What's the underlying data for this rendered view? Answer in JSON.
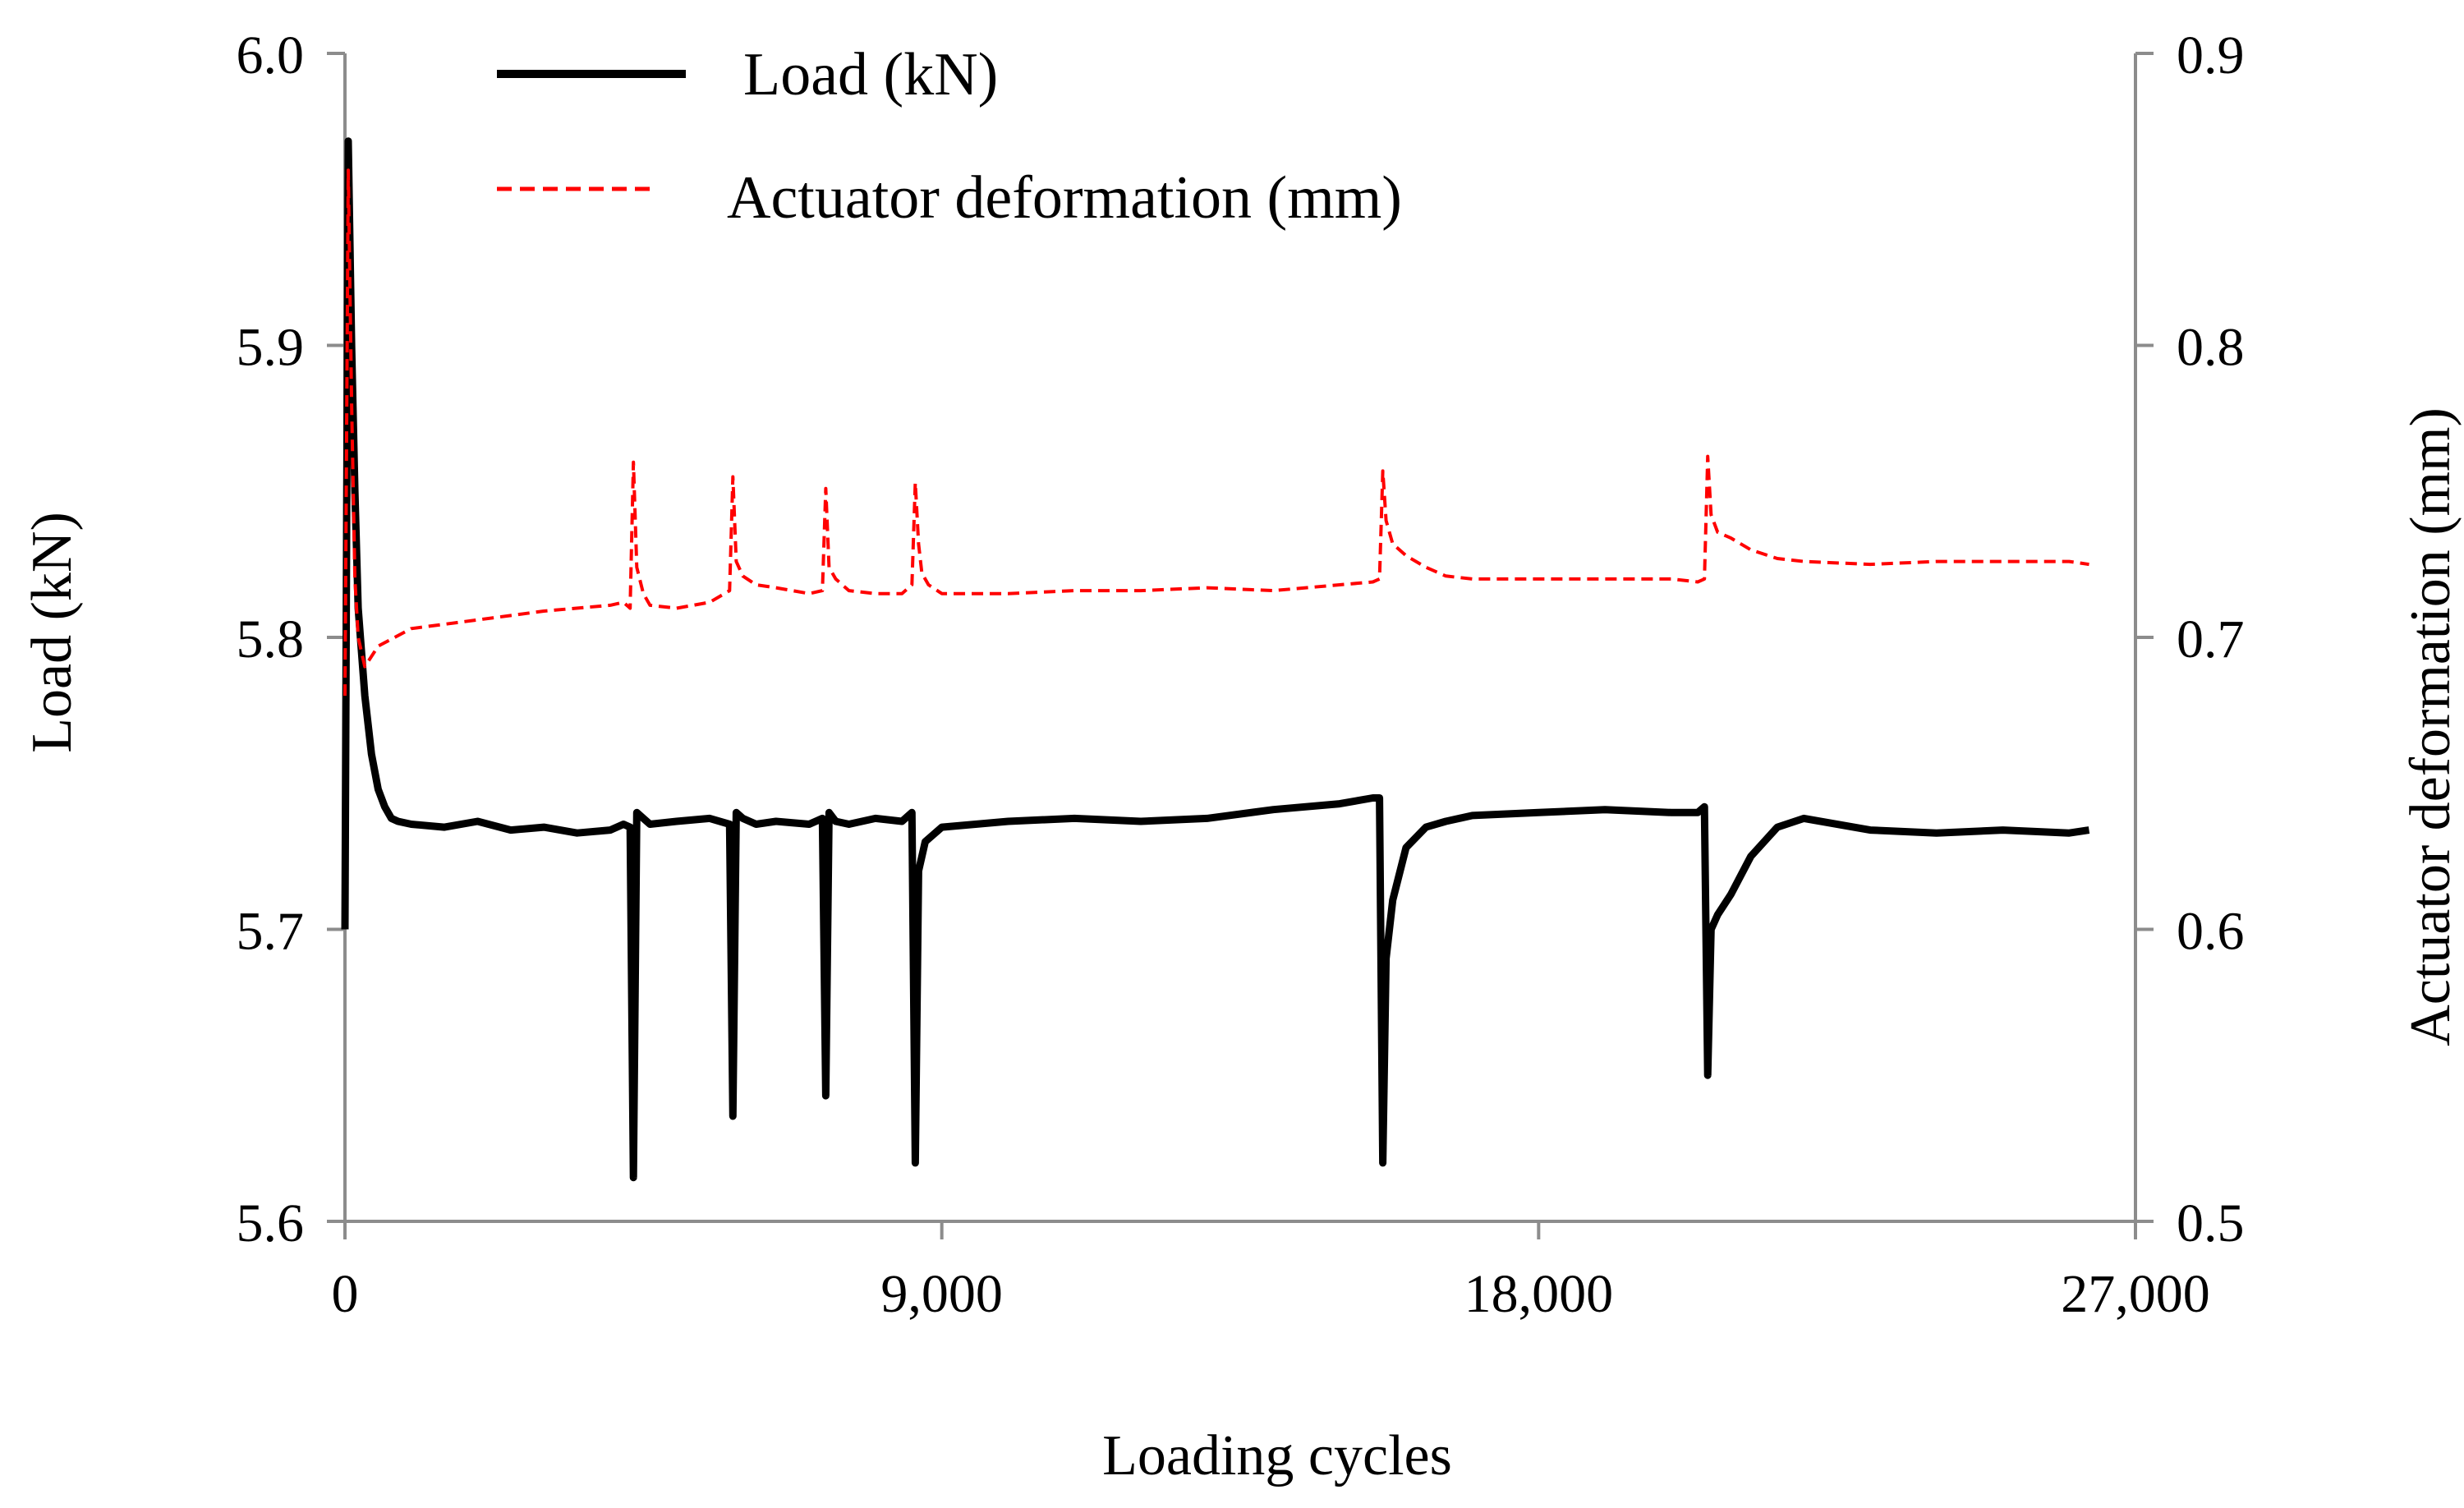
{
  "chart_data": {
    "type": "line",
    "title": "",
    "xlabel": "Loading cycles",
    "ylabel": "Load (kN)",
    "y2label": "Actuator deformation (mm)",
    "xlim": [
      0,
      27000
    ],
    "ylim": [
      5.6,
      6.0
    ],
    "y2lim": [
      0.5,
      0.9
    ],
    "x_ticks": [
      "0",
      "9,000",
      "18,000",
      "27,000"
    ],
    "x_tick_values": [
      0,
      9000,
      18000,
      27000
    ],
    "y_ticks": [
      "5.6",
      "5.7",
      "5.8",
      "5.9",
      "6.0"
    ],
    "y_tick_values": [
      5.6,
      5.7,
      5.8,
      5.9,
      6.0
    ],
    "y2_ticks": [
      "0.5",
      "0.6",
      "0.7",
      "0.8",
      "0.9"
    ],
    "y2_tick_values": [
      0.5,
      0.6,
      0.7,
      0.8,
      0.9
    ],
    "grid": false,
    "legend_position": "top-left",
    "series": [
      {
        "name": "Load (kN)",
        "axis": "left",
        "color": "#000000",
        "style": "solid",
        "x": [
          0,
          50,
          100,
          150,
          200,
          300,
          400,
          500,
          600,
          700,
          800,
          1000,
          1500,
          2000,
          2500,
          3000,
          3500,
          4000,
          4200,
          4300,
          4350,
          4400,
          4500,
          4600,
          5000,
          5500,
          5800,
          5850,
          5900,
          6000,
          6200,
          6500,
          7000,
          7200,
          7250,
          7300,
          7400,
          7600,
          8000,
          8400,
          8550,
          8600,
          8650,
          8750,
          9000,
          10000,
          11000,
          12000,
          13000,
          14000,
          15000,
          15500,
          15600,
          15650,
          15700,
          15800,
          16000,
          16300,
          16600,
          17000,
          18000,
          19000,
          20000,
          20400,
          20500,
          20550,
          20600,
          20700,
          20900,
          21200,
          21600,
          22000,
          23000,
          24000,
          25000,
          26000,
          26300
        ],
        "values": [
          5.7,
          5.97,
          5.9,
          5.85,
          5.81,
          5.78,
          5.76,
          5.748,
          5.742,
          5.738,
          5.737,
          5.736,
          5.735,
          5.737,
          5.734,
          5.735,
          5.733,
          5.734,
          5.736,
          5.735,
          5.615,
          5.74,
          5.738,
          5.736,
          5.737,
          5.738,
          5.736,
          5.636,
          5.74,
          5.738,
          5.736,
          5.737,
          5.736,
          5.738,
          5.643,
          5.74,
          5.737,
          5.736,
          5.738,
          5.737,
          5.74,
          5.62,
          5.72,
          5.73,
          5.735,
          5.737,
          5.738,
          5.737,
          5.738,
          5.741,
          5.743,
          5.745,
          5.745,
          5.62,
          5.69,
          5.71,
          5.728,
          5.735,
          5.737,
          5.739,
          5.74,
          5.741,
          5.74,
          5.74,
          5.742,
          5.65,
          5.7,
          5.705,
          5.712,
          5.725,
          5.735,
          5.738,
          5.734,
          5.733,
          5.734,
          5.733,
          5.734
        ]
      },
      {
        "name": "Actuator deformation (mm)",
        "axis": "right",
        "color": "#ff0000",
        "style": "dashed",
        "x": [
          0,
          50,
          100,
          150,
          200,
          300,
          500,
          1000,
          2000,
          3000,
          4000,
          4200,
          4300,
          4350,
          4400,
          4500,
          4600,
          5000,
          5500,
          5800,
          5850,
          5900,
          6000,
          6200,
          6500,
          7000,
          7200,
          7250,
          7300,
          7400,
          7600,
          8000,
          8400,
          8550,
          8600,
          8650,
          8700,
          8800,
          9000,
          10000,
          11000,
          12000,
          13000,
          14000,
          15000,
          15500,
          15600,
          15650,
          15700,
          15800,
          16000,
          16300,
          16600,
          17000,
          18000,
          19000,
          20000,
          20400,
          20500,
          20550,
          20600,
          20700,
          20900,
          21200,
          21600,
          22000,
          23000,
          24000,
          25000,
          26000,
          26300
        ],
        "values": [
          0.68,
          0.86,
          0.78,
          0.72,
          0.7,
          0.69,
          0.697,
          0.703,
          0.706,
          0.709,
          0.711,
          0.712,
          0.71,
          0.76,
          0.724,
          0.715,
          0.711,
          0.71,
          0.712,
          0.716,
          0.755,
          0.726,
          0.721,
          0.718,
          0.717,
          0.715,
          0.716,
          0.751,
          0.724,
          0.72,
          0.716,
          0.715,
          0.715,
          0.718,
          0.753,
          0.732,
          0.722,
          0.718,
          0.715,
          0.715,
          0.716,
          0.716,
          0.717,
          0.716,
          0.718,
          0.719,
          0.72,
          0.757,
          0.74,
          0.732,
          0.728,
          0.724,
          0.721,
          0.72,
          0.72,
          0.72,
          0.72,
          0.719,
          0.72,
          0.762,
          0.742,
          0.736,
          0.734,
          0.73,
          0.727,
          0.726,
          0.725,
          0.726,
          0.726,
          0.726,
          0.725
        ]
      }
    ],
    "annotations": []
  }
}
